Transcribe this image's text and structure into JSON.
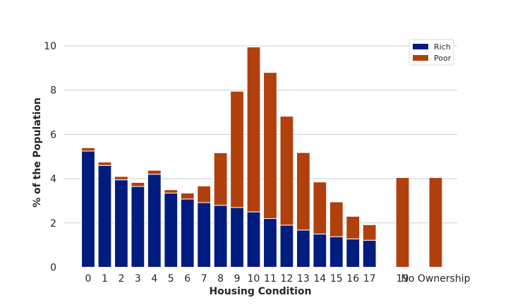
{
  "chart_data": {
    "type": "bar",
    "stacked": true,
    "title": "",
    "xlabel": "Housing Condition",
    "ylabel": "% of the Population",
    "ylim": [
      0,
      10.5
    ],
    "yticks": [
      0,
      2,
      4,
      6,
      8,
      10
    ],
    "grid": "horizontal",
    "legend_position": "top-right",
    "categories": [
      "0",
      "1",
      "2",
      "3",
      "4",
      "5",
      "6",
      "7",
      "8",
      "9",
      "10",
      "11",
      "12",
      "13",
      "14",
      "15",
      "16",
      "17",
      "19",
      "No Ownership"
    ],
    "x": [
      0,
      1,
      2,
      3,
      4,
      5,
      6,
      7,
      8,
      9,
      10,
      11,
      12,
      13,
      14,
      15,
      16,
      17,
      19,
      21
    ],
    "series": [
      {
        "name": "Rich",
        "color": "#001c7f",
        "values": [
          5.25,
          4.6,
          3.95,
          3.65,
          4.2,
          3.35,
          3.08,
          2.92,
          2.8,
          2.7,
          2.5,
          2.2,
          1.9,
          1.68,
          1.5,
          1.38,
          1.28,
          1.22,
          0,
          0
        ]
      },
      {
        "name": "Poor",
        "color": "#b1400d",
        "values": [
          0.15,
          0.15,
          0.15,
          0.18,
          0.18,
          0.15,
          0.27,
          0.75,
          2.37,
          5.25,
          7.45,
          6.6,
          4.92,
          3.5,
          2.35,
          1.57,
          1.02,
          0.7,
          4.05,
          4.05
        ]
      }
    ]
  }
}
